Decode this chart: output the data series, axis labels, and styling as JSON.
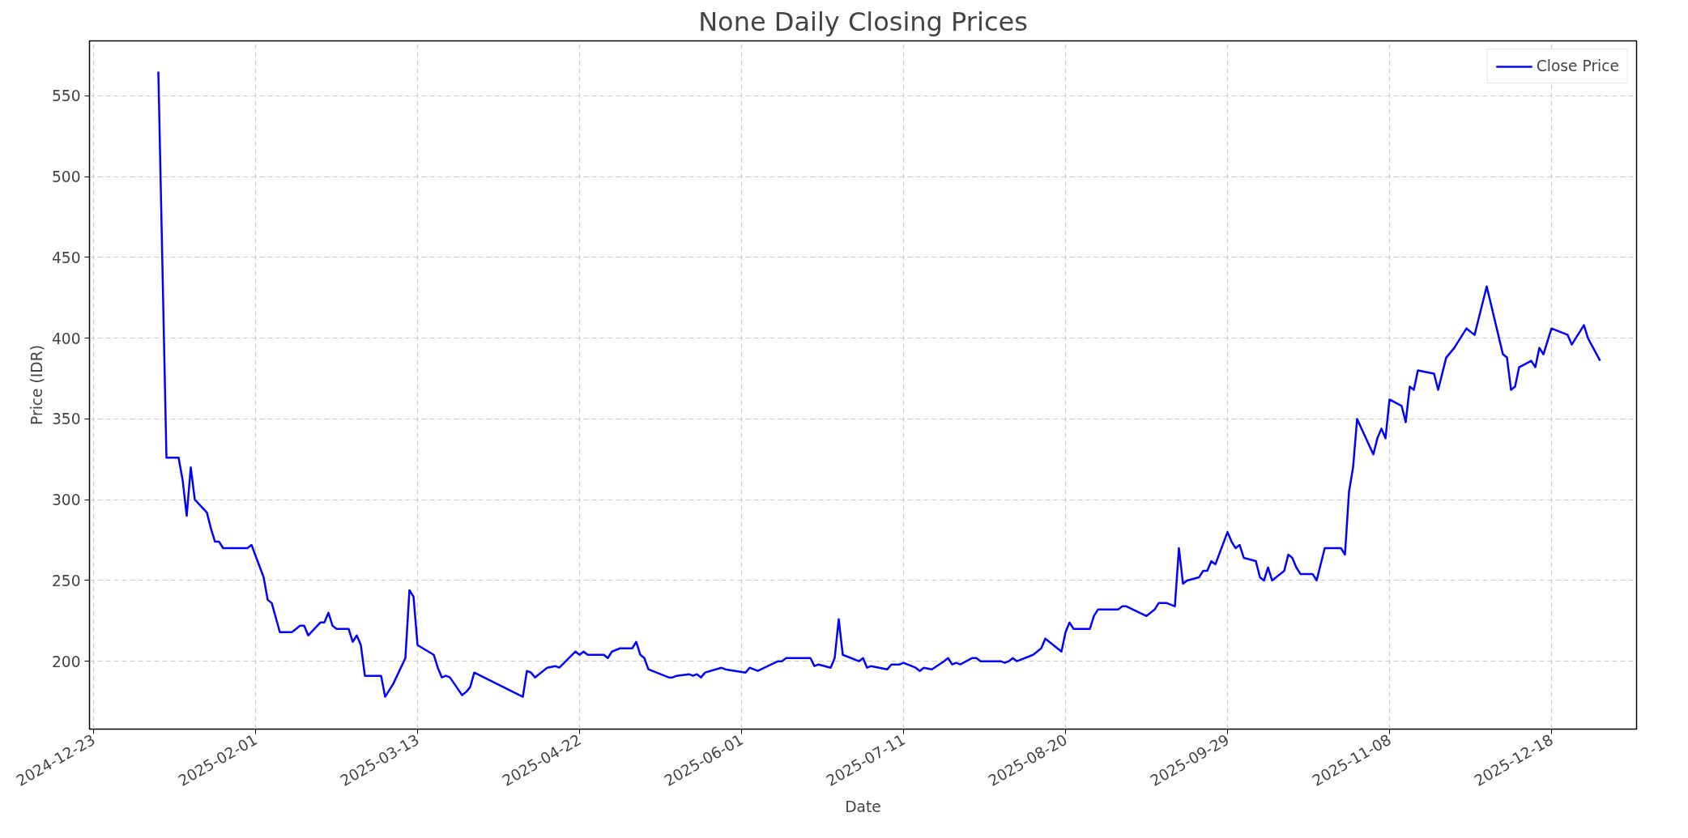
{
  "chart_data": {
    "type": "line",
    "title": "None Daily Closing Prices",
    "xlabel": "Date",
    "ylabel": "Price (IDR)",
    "xlim": [
      "2024-12-22",
      "2026-01-08"
    ],
    "ylim": [
      158,
      584
    ],
    "xticks": [
      "2024-12-23",
      "2025-02-01",
      "2025-03-13",
      "2025-04-22",
      "2025-06-01",
      "2025-07-11",
      "2025-08-20",
      "2025-09-29",
      "2025-11-08",
      "2025-12-18"
    ],
    "yticks": [
      200,
      250,
      300,
      350,
      400,
      450,
      500,
      550
    ],
    "grid": true,
    "legend": "top right",
    "x": [
      "2025-01-08",
      "2025-01-10",
      "2025-01-13",
      "2025-01-14",
      "2025-01-15",
      "2025-01-16",
      "2025-01-17",
      "2025-01-20",
      "2025-01-21",
      "2025-01-22",
      "2025-01-23",
      "2025-01-24",
      "2025-01-30",
      "2025-01-31",
      "2025-02-03",
      "2025-02-04",
      "2025-02-05",
      "2025-02-07",
      "2025-02-10",
      "2025-02-12",
      "2025-02-13",
      "2025-02-14",
      "2025-02-17",
      "2025-02-18",
      "2025-02-19",
      "2025-02-20",
      "2025-02-21",
      "2025-02-24",
      "2025-02-25",
      "2025-02-26",
      "2025-02-27",
      "2025-02-28",
      "2025-03-04",
      "2025-03-05",
      "2025-03-07",
      "2025-03-10",
      "2025-03-11",
      "2025-03-12",
      "2025-03-13",
      "2025-03-17",
      "2025-03-18",
      "2025-03-19",
      "2025-03-20",
      "2025-03-21",
      "2025-03-24",
      "2025-03-25",
      "2025-03-26",
      "2025-03-27",
      "2025-04-08",
      "2025-04-09",
      "2025-04-10",
      "2025-04-11",
      "2025-04-14",
      "2025-04-16",
      "2025-04-17",
      "2025-04-21",
      "2025-04-22",
      "2025-04-23",
      "2025-04-24",
      "2025-04-28",
      "2025-04-29",
      "2025-04-30",
      "2025-05-02",
      "2025-05-05",
      "2025-05-06",
      "2025-05-07",
      "2025-05-08",
      "2025-05-09",
      "2025-05-14",
      "2025-05-15",
      "2025-05-16",
      "2025-05-19",
      "2025-05-20",
      "2025-05-21",
      "2025-05-22",
      "2025-05-23",
      "2025-05-27",
      "2025-05-28",
      "2025-06-02",
      "2025-06-03",
      "2025-06-05",
      "2025-06-10",
      "2025-06-11",
      "2025-06-12",
      "2025-06-18",
      "2025-06-19",
      "2025-06-20",
      "2025-06-23",
      "2025-06-24",
      "2025-06-25",
      "2025-06-26",
      "2025-06-30",
      "2025-07-01",
      "2025-07-02",
      "2025-07-03",
      "2025-07-07",
      "2025-07-08",
      "2025-07-10",
      "2025-07-11",
      "2025-07-14",
      "2025-07-15",
      "2025-07-16",
      "2025-07-18",
      "2025-07-21",
      "2025-07-22",
      "2025-07-23",
      "2025-07-24",
      "2025-07-25",
      "2025-07-28",
      "2025-07-29",
      "2025-07-30",
      "2025-08-04",
      "2025-08-05",
      "2025-08-06",
      "2025-08-07",
      "2025-08-08",
      "2025-08-12",
      "2025-08-14",
      "2025-08-15",
      "2025-08-19",
      "2025-08-20",
      "2025-08-21",
      "2025-08-22",
      "2025-08-26",
      "2025-08-27",
      "2025-08-28",
      "2025-09-02",
      "2025-09-03",
      "2025-09-04",
      "2025-09-09",
      "2025-09-11",
      "2025-09-12",
      "2025-09-14",
      "2025-09-16",
      "2025-09-17",
      "2025-09-18",
      "2025-09-19",
      "2025-09-22",
      "2025-09-23",
      "2025-09-24",
      "2025-09-25",
      "2025-09-26",
      "2025-09-29",
      "2025-09-30",
      "2025-10-01",
      "2025-10-02",
      "2025-10-03",
      "2025-10-06",
      "2025-10-07",
      "2025-10-08",
      "2025-10-09",
      "2025-10-10",
      "2025-10-13",
      "2025-10-14",
      "2025-10-15",
      "2025-10-16",
      "2025-10-17",
      "2025-10-20",
      "2025-10-21",
      "2025-10-23",
      "2025-10-27",
      "2025-10-28",
      "2025-10-29",
      "2025-10-30",
      "2025-10-31",
      "2025-11-04",
      "2025-11-05",
      "2025-11-06",
      "2025-11-07",
      "2025-11-08",
      "2025-11-11",
      "2025-11-12",
      "2025-11-13",
      "2025-11-14",
      "2025-11-15",
      "2025-11-19",
      "2025-11-20",
      "2025-11-22",
      "2025-11-24",
      "2025-11-27",
      "2025-11-29",
      "2025-11-30",
      "2025-12-02",
      "2025-12-06",
      "2025-12-07",
      "2025-12-08",
      "2025-12-09",
      "2025-12-10",
      "2025-12-13",
      "2025-12-14",
      "2025-12-15",
      "2025-12-16",
      "2025-12-18",
      "2025-12-22",
      "2025-12-23",
      "2025-12-26",
      "2025-12-27",
      "2025-12-30"
    ],
    "series": [
      {
        "name": "Close Price",
        "color": "#0000ff",
        "values": [
          565,
          326,
          326,
          312,
          290,
          320,
          300,
          292,
          282,
          274,
          274,
          270,
          270,
          272,
          252,
          238,
          236,
          218,
          218,
          222,
          222,
          216,
          224,
          224,
          230,
          222,
          220,
          220,
          212,
          216,
          210,
          191,
          191,
          178,
          186,
          202,
          244,
          240,
          210,
          204,
          196,
          190,
          191,
          190,
          179,
          181,
          184,
          193,
          178,
          194,
          193,
          190,
          196,
          197,
          196,
          206,
          204,
          206,
          204,
          204,
          202,
          206,
          208,
          208,
          212,
          204,
          202,
          195,
          190,
          190,
          191,
          192,
          191,
          192,
          190,
          193,
          196,
          195,
          193,
          196,
          194,
          200,
          200,
          202,
          202,
          197,
          198,
          196,
          202,
          226,
          204,
          200,
          202,
          196,
          197,
          195,
          198,
          198,
          199,
          196,
          194,
          196,
          195,
          200,
          202,
          198,
          199,
          198,
          202,
          202,
          200,
          200,
          199,
          200,
          202,
          200,
          204,
          208,
          214,
          206,
          218,
          224,
          220,
          220,
          228,
          232,
          232,
          234,
          234,
          228,
          232,
          236,
          236,
          234,
          270,
          248,
          250,
          252,
          256,
          256,
          262,
          260,
          280,
          274,
          270,
          272,
          264,
          262,
          252,
          250,
          258,
          250,
          256,
          266,
          264,
          258,
          254,
          254,
          250,
          270,
          270,
          266,
          305,
          320,
          350,
          328,
          338,
          344,
          338,
          362,
          358,
          348,
          370,
          368,
          380,
          378,
          368,
          388,
          394,
          406,
          402,
          412,
          432,
          390,
          388,
          368,
          370,
          382,
          386,
          382,
          394,
          390,
          406,
          402,
          396,
          408,
          400,
          386
        ]
      }
    ]
  }
}
